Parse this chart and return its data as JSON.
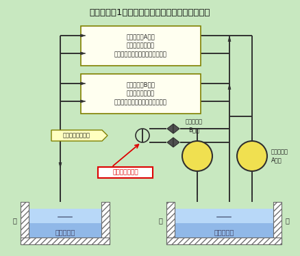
{
  "title": "伊方発電所1号機　海水ポンプまわり概略系統図",
  "bg_color": "#c8e8c0",
  "box_a_text": "１次系補機A系統\n原子炉補機冷却器\n（非常用ディーゼル発電機　等）",
  "box_b_text": "１次系補機B系統\n原子炉補機冷却器\n（非常用ディーゼル発電機　等）",
  "box_secondary_text": "２次系補機冷却用",
  "label_pump_b": "海水ポンプ\nB系統",
  "label_pump_a": "海水ポンプ\nA系統",
  "label_pit_left": "放水ピット",
  "label_pit_right": "海水ピット",
  "label_sea_left": "海",
  "label_sea_right": "海",
  "label_red_box": "当該漏えい箇所",
  "pit_water_color_top": "#b8d8f8",
  "pit_water_color_bot": "#6090d8",
  "pump_circle_color": "#f0e050",
  "box_ab_fill": "#fffff0",
  "box_ab_edge": "#808000",
  "line_color": "#303030",
  "red_color": "#dd0000"
}
